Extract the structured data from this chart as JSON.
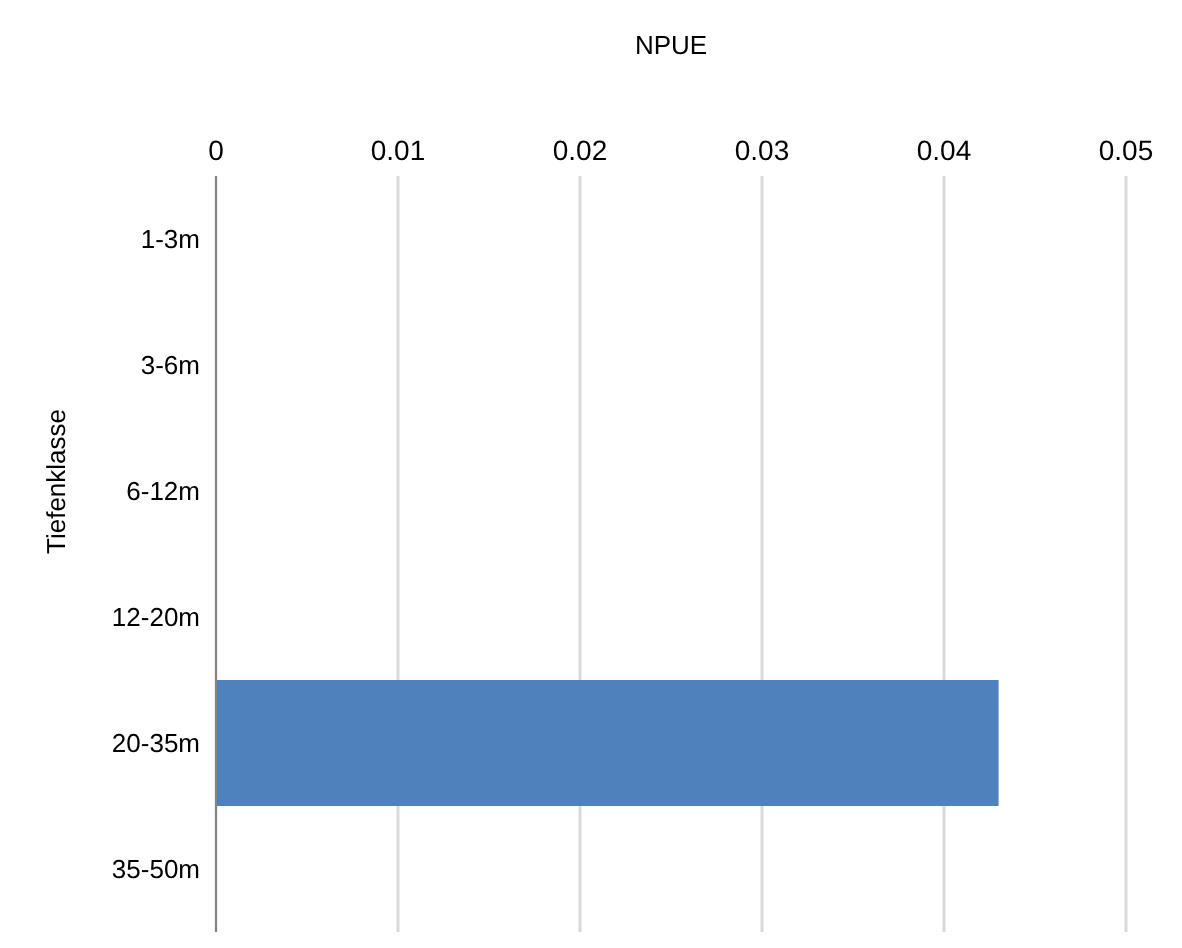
{
  "chart_data": {
    "type": "bar",
    "orientation": "horizontal",
    "xlabel": "NPUE",
    "ylabel": "Tiefenklasse",
    "categories": [
      "1-3m",
      "3-6m",
      "6-12m",
      "12-20m",
      "20-35m",
      "35-50m"
    ],
    "values": [
      0,
      0,
      0,
      0,
      0.043,
      0
    ],
    "color": "#4f81bd",
    "xlim": [
      0,
      0.05
    ],
    "xticks": [
      0,
      0.01,
      0.02,
      0.03,
      0.04,
      0.05
    ],
    "grid": "x",
    "legend": false
  }
}
